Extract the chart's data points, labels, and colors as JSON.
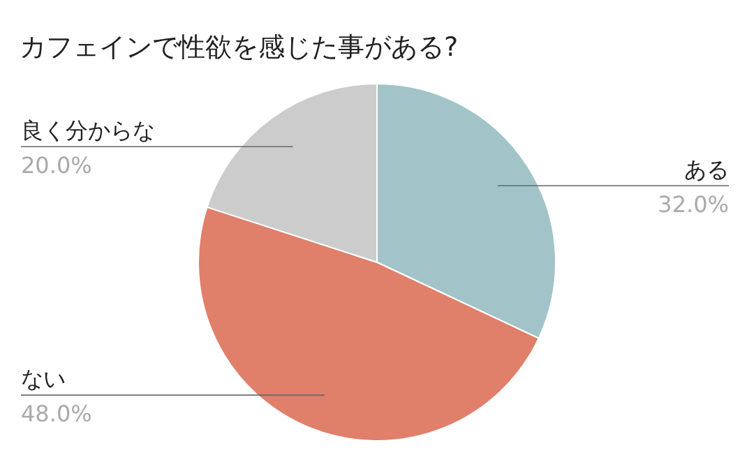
{
  "chart_data": {
    "type": "pie",
    "title": "カフェインで性欲を感じた事がある?",
    "categories": [
      "ある",
      "ない",
      "良く分からな"
    ],
    "values": [
      32.0,
      48.0,
      20.0
    ],
    "value_labels": [
      "32.0%",
      "48.0%",
      "20.0%"
    ],
    "colors": [
      "#a2c4c9",
      "#e07f6a",
      "#cccccc"
    ]
  }
}
